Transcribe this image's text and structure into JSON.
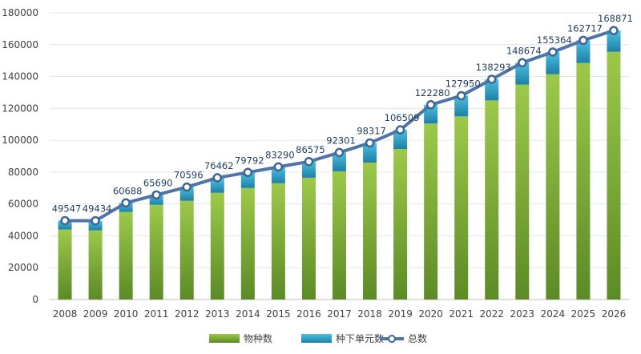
{
  "chart_data": {
    "type": "bar",
    "stacked": true,
    "categories": [
      "2008",
      "2009",
      "2010",
      "2011",
      "2012",
      "2013",
      "2014",
      "2015",
      "2016",
      "2017",
      "2018",
      "2019",
      "2020",
      "2021",
      "2022",
      "2023",
      "2024",
      "2025",
      "2026"
    ],
    "series": [
      {
        "name": "物种数",
        "type": "bar",
        "color": "#7aa83a",
        "values": [
          44000,
          43500,
          55000,
          59500,
          62000,
          67000,
          70000,
          73000,
          76500,
          80500,
          86000,
          94500,
          110500,
          115000,
          125000,
          135000,
          141500,
          148500,
          155500
        ]
      },
      {
        "name": "种下单元数",
        "type": "bar",
        "color": "#2d9fc4",
        "values": [
          5547,
          5934,
          5688,
          6190,
          8596,
          9462,
          9792,
          10290,
          10075,
          11801,
          12317,
          12009,
          11780,
          12950,
          13293,
          13674,
          13864,
          14217,
          13371
        ]
      },
      {
        "name": "总数",
        "type": "line",
        "color": "#4f74a8",
        "values": [
          49547,
          49434,
          60688,
          65690,
          70596,
          76462,
          79792,
          83290,
          86575,
          92301,
          98317,
          106509,
          122280,
          127950,
          138293,
          148674,
          155364,
          162717,
          168871
        ]
      }
    ],
    "data_labels": [
      "49547",
      "49434",
      "60688",
      "65690",
      "70596",
      "76462",
      "79792",
      "83290",
      "86575",
      "92301",
      "98317",
      "106509",
      "122280",
      "127950",
      "138293",
      "148674",
      "155364",
      "162717",
      "168871"
    ],
    "y_ticks": [
      "0",
      "20000",
      "40000",
      "60000",
      "80000",
      "100000",
      "120000",
      "140000",
      "160000",
      "180000"
    ],
    "ylim": [
      0,
      180000
    ],
    "grid": true,
    "legend_position": "bottom-center"
  }
}
